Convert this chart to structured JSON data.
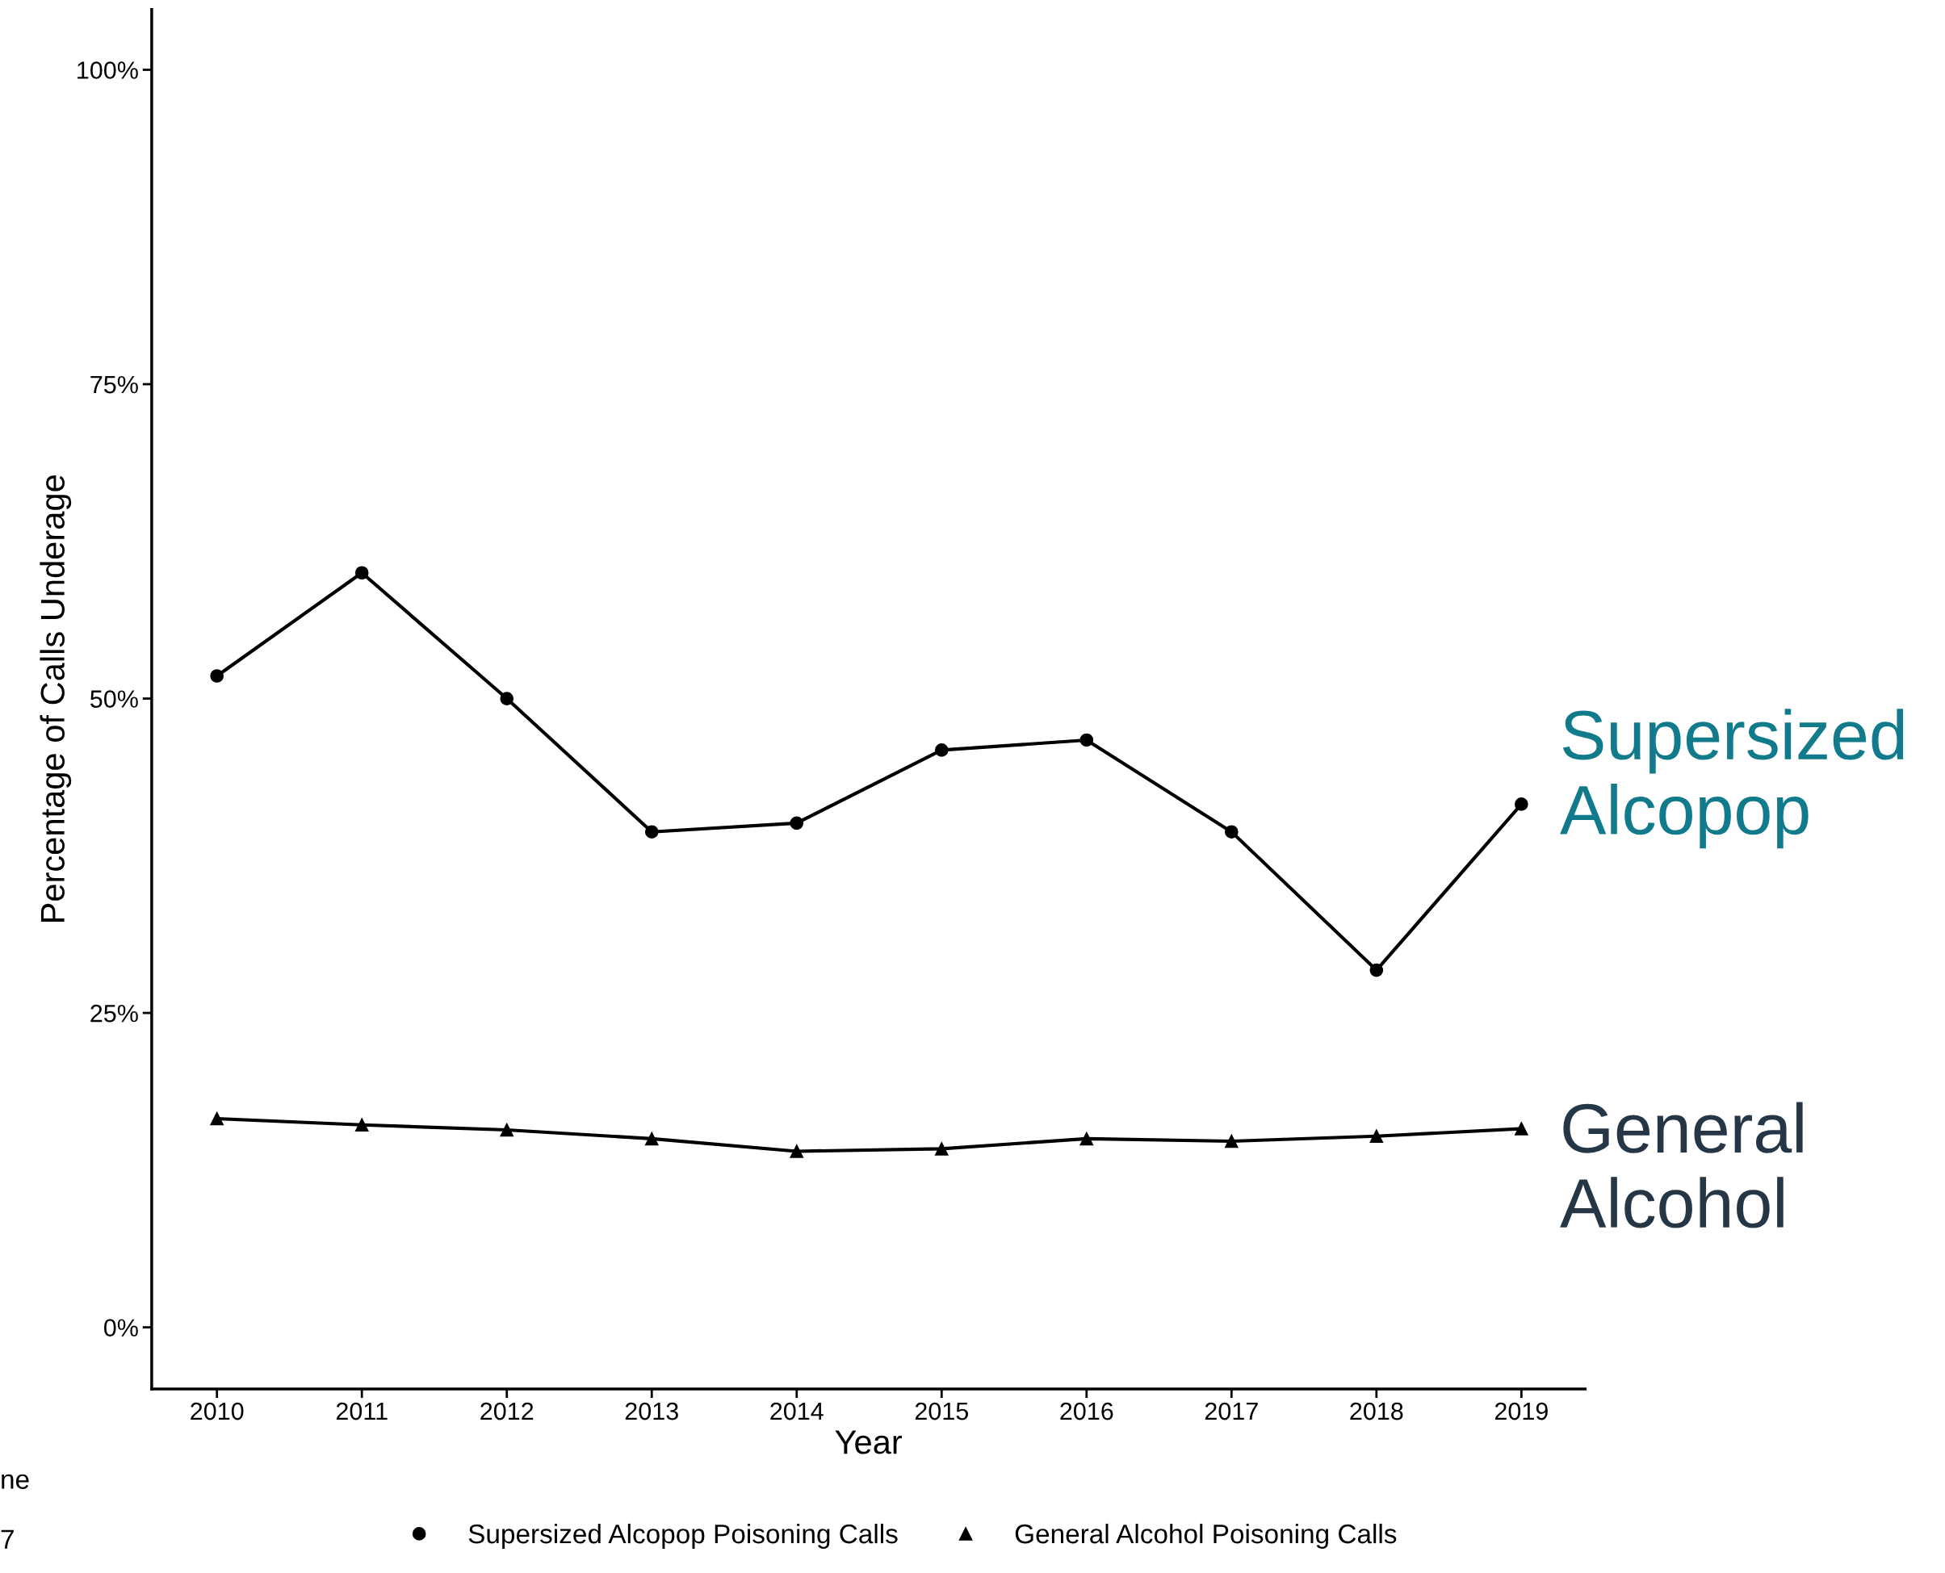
{
  "chart_data": {
    "type": "line",
    "xlabel": "Year",
    "ylabel": "Percentage of Calls Underage",
    "x": [
      2010,
      2011,
      2012,
      2013,
      2014,
      2015,
      2016,
      2017,
      2018,
      2019
    ],
    "series": [
      {
        "name": "Supersized Alcopop Poisoning Calls",
        "color": "#000000",
        "marker": "circle",
        "values": [
          51.8,
          60.0,
          50.0,
          39.4,
          40.1,
          45.9,
          46.7,
          39.4,
          28.4,
          41.6
        ]
      },
      {
        "name": "General Alcohol Poisoning Calls",
        "color": "#000000",
        "marker": "triangle",
        "values": [
          16.6,
          16.1,
          15.7,
          15.0,
          14.0,
          14.2,
          15.0,
          14.8,
          15.2,
          15.8
        ]
      }
    ],
    "xlim": [
      2009.55,
      2019.44
    ],
    "xticks": [
      2010,
      2011,
      2012,
      2013,
      2014,
      2015,
      2016,
      2017,
      2018,
      2019
    ],
    "ylim": [
      -4.9,
      104.8
    ],
    "yticks": [
      {
        "value": 0,
        "label": "0%"
      },
      {
        "value": 25,
        "label": "25%"
      },
      {
        "value": 50,
        "label": "50%"
      },
      {
        "value": 75,
        "label": "75%"
      },
      {
        "value": 100,
        "label": "100%"
      }
    ],
    "grid": false,
    "legend": "bottom",
    "line_style": "solid",
    "annotations": [
      "Supersized\nAlcopop",
      "General\nAlcohol",
      "ne",
      "7"
    ]
  }
}
